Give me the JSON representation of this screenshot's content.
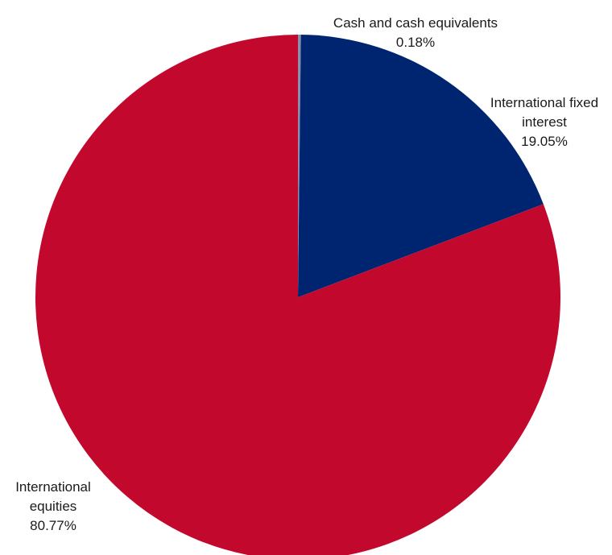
{
  "chart_data": {
    "type": "pie",
    "title": "",
    "start_angle_deg": 0,
    "direction": "clockwise",
    "slices": [
      {
        "name": "Cash and cash equivalents",
        "label_lines": [
          "Cash and cash equivalents"
        ],
        "value_label": "0.18%",
        "value": 0.18,
        "color": "#8a8fb0"
      },
      {
        "name": "International fixed interest",
        "label_lines": [
          "International fixed",
          "interest"
        ],
        "value_label": "19.05%",
        "value": 19.05,
        "color": "#002570"
      },
      {
        "name": "International equities",
        "label_lines": [
          "International",
          "equities"
        ],
        "value_label": "80.77%",
        "value": 80.77,
        "color": "#c3082e"
      }
    ]
  }
}
